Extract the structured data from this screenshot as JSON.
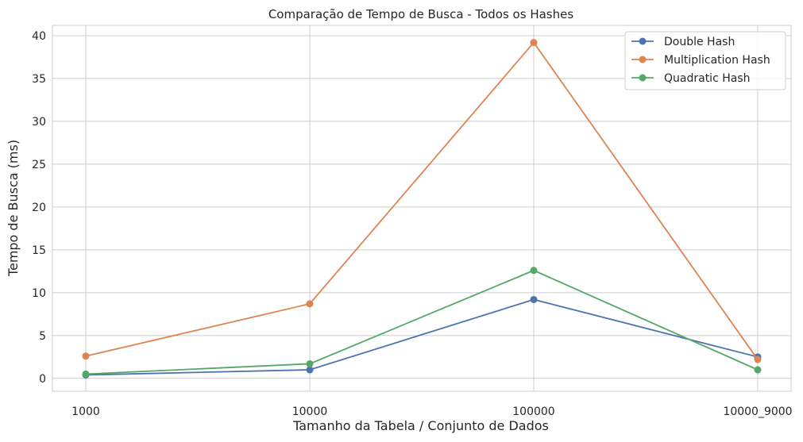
{
  "chart_data": {
    "type": "line",
    "title": "Comparação de Tempo de Busca - Todos os Hashes",
    "xlabel": "Tamanho da Tabela / Conjunto de Dados",
    "ylabel": "Tempo de Busca (ms)",
    "categories": [
      "1000",
      "10000",
      "100000",
      "10000_9000"
    ],
    "ylim": [
      -1.5,
      41.2
    ],
    "yticks": [
      0,
      5,
      10,
      15,
      20,
      25,
      30,
      35,
      40
    ],
    "grid": true,
    "legend_position": "top-right",
    "series": [
      {
        "name": "Double Hash",
        "color": "#4c72b0",
        "values": [
          0.4,
          1.0,
          9.2,
          2.5
        ]
      },
      {
        "name": "Multiplication Hash",
        "color": "#dd8452",
        "values": [
          2.6,
          8.7,
          39.2,
          2.2
        ]
      },
      {
        "name": "Quadratic Hash",
        "color": "#55a868",
        "values": [
          0.5,
          1.7,
          12.6,
          1.0
        ]
      }
    ]
  }
}
